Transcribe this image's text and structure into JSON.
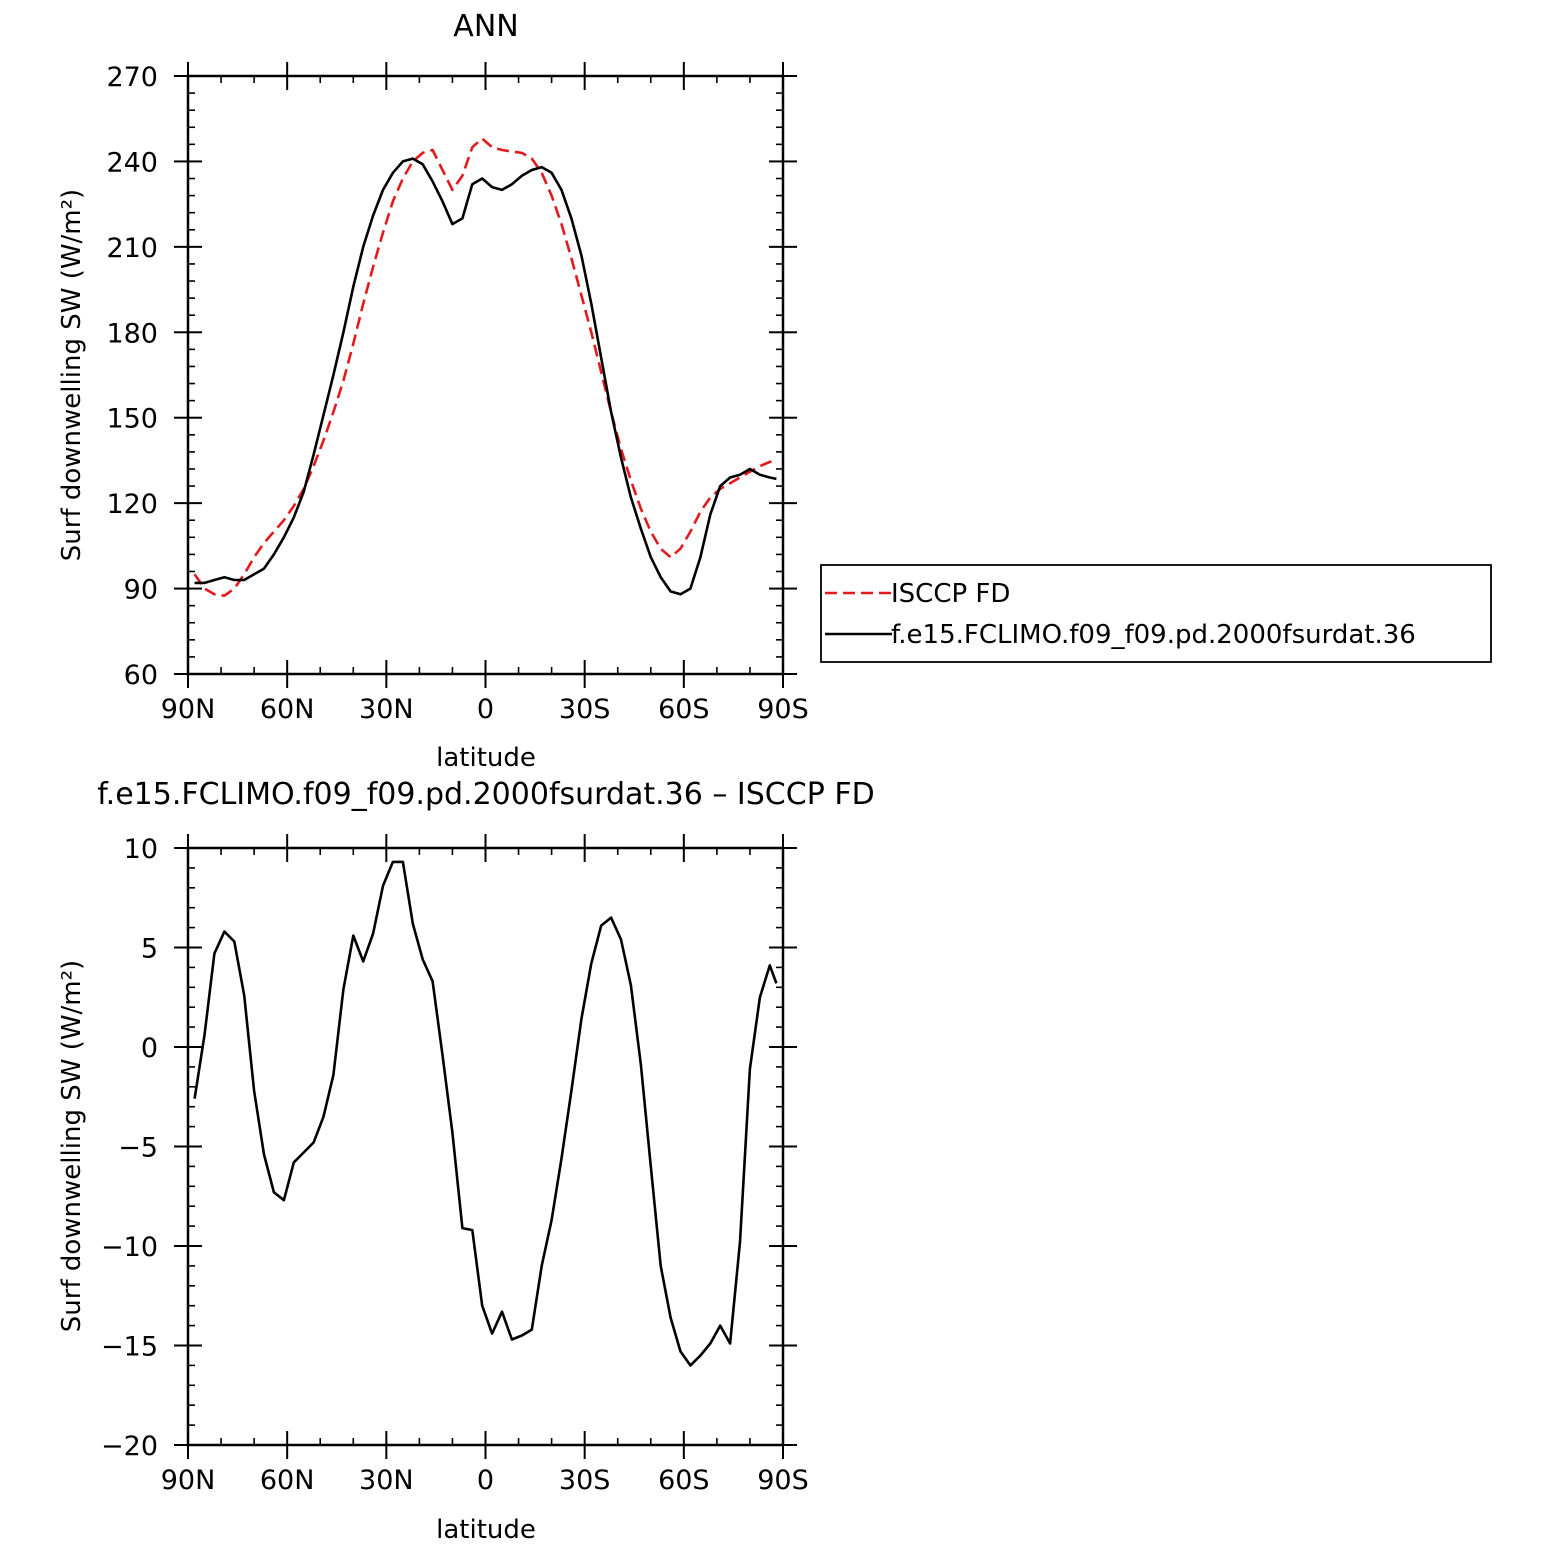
{
  "chart_data": [
    {
      "type": "line",
      "title": "ANN",
      "xlabel": "latitude",
      "ylabel": "Surf downwelling SW (W/m²)",
      "ylim": [
        60,
        270
      ],
      "yticks": [
        60,
        90,
        120,
        150,
        180,
        210,
        240,
        270
      ],
      "xlim": [
        90,
        -90
      ],
      "xticks": [
        90,
        60,
        30,
        0,
        -30,
        -60,
        -90
      ],
      "xtick_labels": [
        "90N",
        "60N",
        "30N",
        "0",
        "30S",
        "60S",
        "90S"
      ],
      "legend_position": "right",
      "series": [
        {
          "name": "ISCCP FD",
          "color": "#e31a1c",
          "dash": "dashed",
          "x": [
            88,
            85,
            82,
            79,
            76,
            73,
            70,
            67,
            64,
            61,
            58,
            55,
            52,
            49,
            46,
            43,
            40,
            37,
            34,
            31,
            28,
            25,
            22,
            19,
            16,
            13,
            10,
            7,
            4,
            1,
            -2,
            -5,
            -8,
            -11,
            -14,
            -17,
            -20,
            -23,
            -26,
            -29,
            -32,
            -35,
            -38,
            -41,
            -44,
            -47,
            -50,
            -53,
            -56,
            -59,
            -62,
            -65,
            -68,
            -71,
            -74,
            -77,
            -80,
            -83,
            -86,
            -88
          ],
          "y": [
            95,
            90,
            88,
            87.5,
            90,
            95,
            101,
            106,
            110,
            114,
            119,
            125,
            133,
            142,
            152,
            163,
            176,
            190,
            203,
            215,
            226,
            234,
            240,
            243,
            244,
            237,
            230,
            235,
            245,
            248,
            245,
            244,
            243.5,
            243,
            241,
            236,
            228,
            218,
            206,
            193,
            180,
            166,
            152,
            139,
            128,
            118,
            110,
            104,
            101,
            104,
            110,
            117,
            122,
            125,
            127,
            129,
            131,
            133,
            134.5,
            135
          ],
          "values": [
            95,
            90,
            88,
            87.5,
            90,
            95,
            101,
            106,
            110,
            114,
            119,
            125,
            133,
            142,
            152,
            163,
            176,
            190,
            203,
            215,
            226,
            234,
            240,
            243,
            244,
            237,
            230,
            235,
            245,
            248,
            245,
            244,
            243.5,
            243,
            241,
            236,
            228,
            218,
            206,
            193,
            180,
            166,
            152,
            139,
            128,
            118,
            110,
            104,
            101,
            104,
            110,
            117,
            122,
            125,
            127,
            129,
            131,
            133,
            134.5,
            135
          ]
        },
        {
          "name": "f.e15.FCLIMO.f09_f09.pd.2000fsurdat.36",
          "color": "#000000",
          "dash": "solid",
          "x": [
            88,
            85,
            82,
            79,
            76,
            73,
            70,
            67,
            64,
            61,
            58,
            55,
            52,
            49,
            46,
            43,
            40,
            37,
            34,
            31,
            28,
            25,
            22,
            19,
            16,
            13,
            10,
            7,
            4,
            1,
            -2,
            -5,
            -8,
            -11,
            -14,
            -17,
            -20,
            -23,
            -26,
            -29,
            -32,
            -35,
            -38,
            -41,
            -44,
            -47,
            -50,
            -53,
            -56,
            -59,
            -62,
            -65,
            -68,
            -71,
            -74,
            -77,
            -80,
            -83,
            -86,
            -88
          ],
          "y": [
            92,
            92,
            93,
            94,
            93,
            93,
            95,
            97,
            102,
            108,
            115,
            124,
            137,
            151,
            165,
            180,
            196,
            210,
            221,
            230,
            236,
            240,
            241,
            239,
            233,
            226,
            218,
            220,
            232,
            234,
            231,
            230,
            232,
            235,
            237,
            238,
            236,
            230,
            220,
            207,
            190,
            171,
            152,
            136,
            122,
            111,
            101,
            94,
            89,
            88,
            90,
            101,
            116,
            126,
            129,
            130,
            132,
            130,
            129,
            128.5
          ],
          "values": [
            92,
            92,
            93,
            94,
            93,
            93,
            95,
            97,
            102,
            108,
            115,
            124,
            137,
            151,
            165,
            180,
            196,
            210,
            221,
            230,
            236,
            240,
            241,
            239,
            233,
            226,
            218,
            220,
            232,
            234,
            231,
            230,
            232,
            235,
            237,
            238,
            236,
            230,
            220,
            207,
            190,
            171,
            152,
            136,
            122,
            111,
            101,
            94,
            89,
            88,
            90,
            101,
            116,
            126,
            129,
            130,
            132,
            130,
            129,
            128.5
          ]
        }
      ]
    },
    {
      "type": "line",
      "title": "f.e15.FCLIMO.f09_f09.pd.2000fsurdat.36 – ISCCP FD",
      "xlabel": "latitude",
      "ylabel": "Surf downwelling SW (W/m²)",
      "ylim": [
        -20,
        10
      ],
      "yticks": [
        -20,
        -15,
        -10,
        -5,
        0,
        5,
        10
      ],
      "ytick_labels": [
        "−20",
        "−15",
        "−10",
        "−5",
        "0",
        "5",
        "10"
      ],
      "xlim": [
        90,
        -90
      ],
      "xticks": [
        90,
        60,
        30,
        0,
        -30,
        -60,
        -90
      ],
      "xtick_labels": [
        "90N",
        "60N",
        "30N",
        "0",
        "30S",
        "60S",
        "90S"
      ],
      "series": [
        {
          "color": "#000000",
          "dash": "solid",
          "x": [
            88,
            85,
            82,
            79,
            76,
            73,
            70,
            67,
            64,
            61,
            58,
            55,
            52,
            49,
            46,
            43,
            40,
            37,
            34,
            31,
            28,
            25,
            22,
            19,
            16,
            13,
            10,
            7,
            4,
            1,
            -2,
            -5,
            -8,
            -11,
            -14,
            -17,
            -20,
            -23,
            -26,
            -29,
            -32,
            -35,
            -38,
            -41,
            -44,
            -47,
            -50,
            -53,
            -56,
            -59,
            -62,
            -65,
            -68,
            -71,
            -74,
            -77,
            -80,
            -83,
            -86,
            -88
          ],
          "y": [
            -2.6,
            0.6,
            4.7,
            5.8,
            5.3,
            2.6,
            -2.2,
            -5.4,
            -7.3,
            -7.7,
            -5.8,
            -5.3,
            -4.8,
            -3.5,
            -1.4,
            2.9,
            5.6,
            4.3,
            5.7,
            8.1,
            9.3,
            9.3,
            6.2,
            4.4,
            3.3,
            -0.4,
            -4.3,
            -9.1,
            -9.2,
            -13,
            -14.4,
            -13.3,
            -14.7,
            -14.5,
            -14.2,
            -11,
            -8.7,
            -5.6,
            -2.2,
            1.4,
            4.2,
            6.1,
            6.5,
            5.4,
            3.1,
            -0.9,
            -6,
            -11,
            -13.6,
            -15.3,
            -16,
            -15.5,
            -14.9,
            -14,
            -14.9,
            -9.8,
            -1.1,
            2.5,
            4.1,
            3.2
          ]
        }
      ]
    }
  ]
}
